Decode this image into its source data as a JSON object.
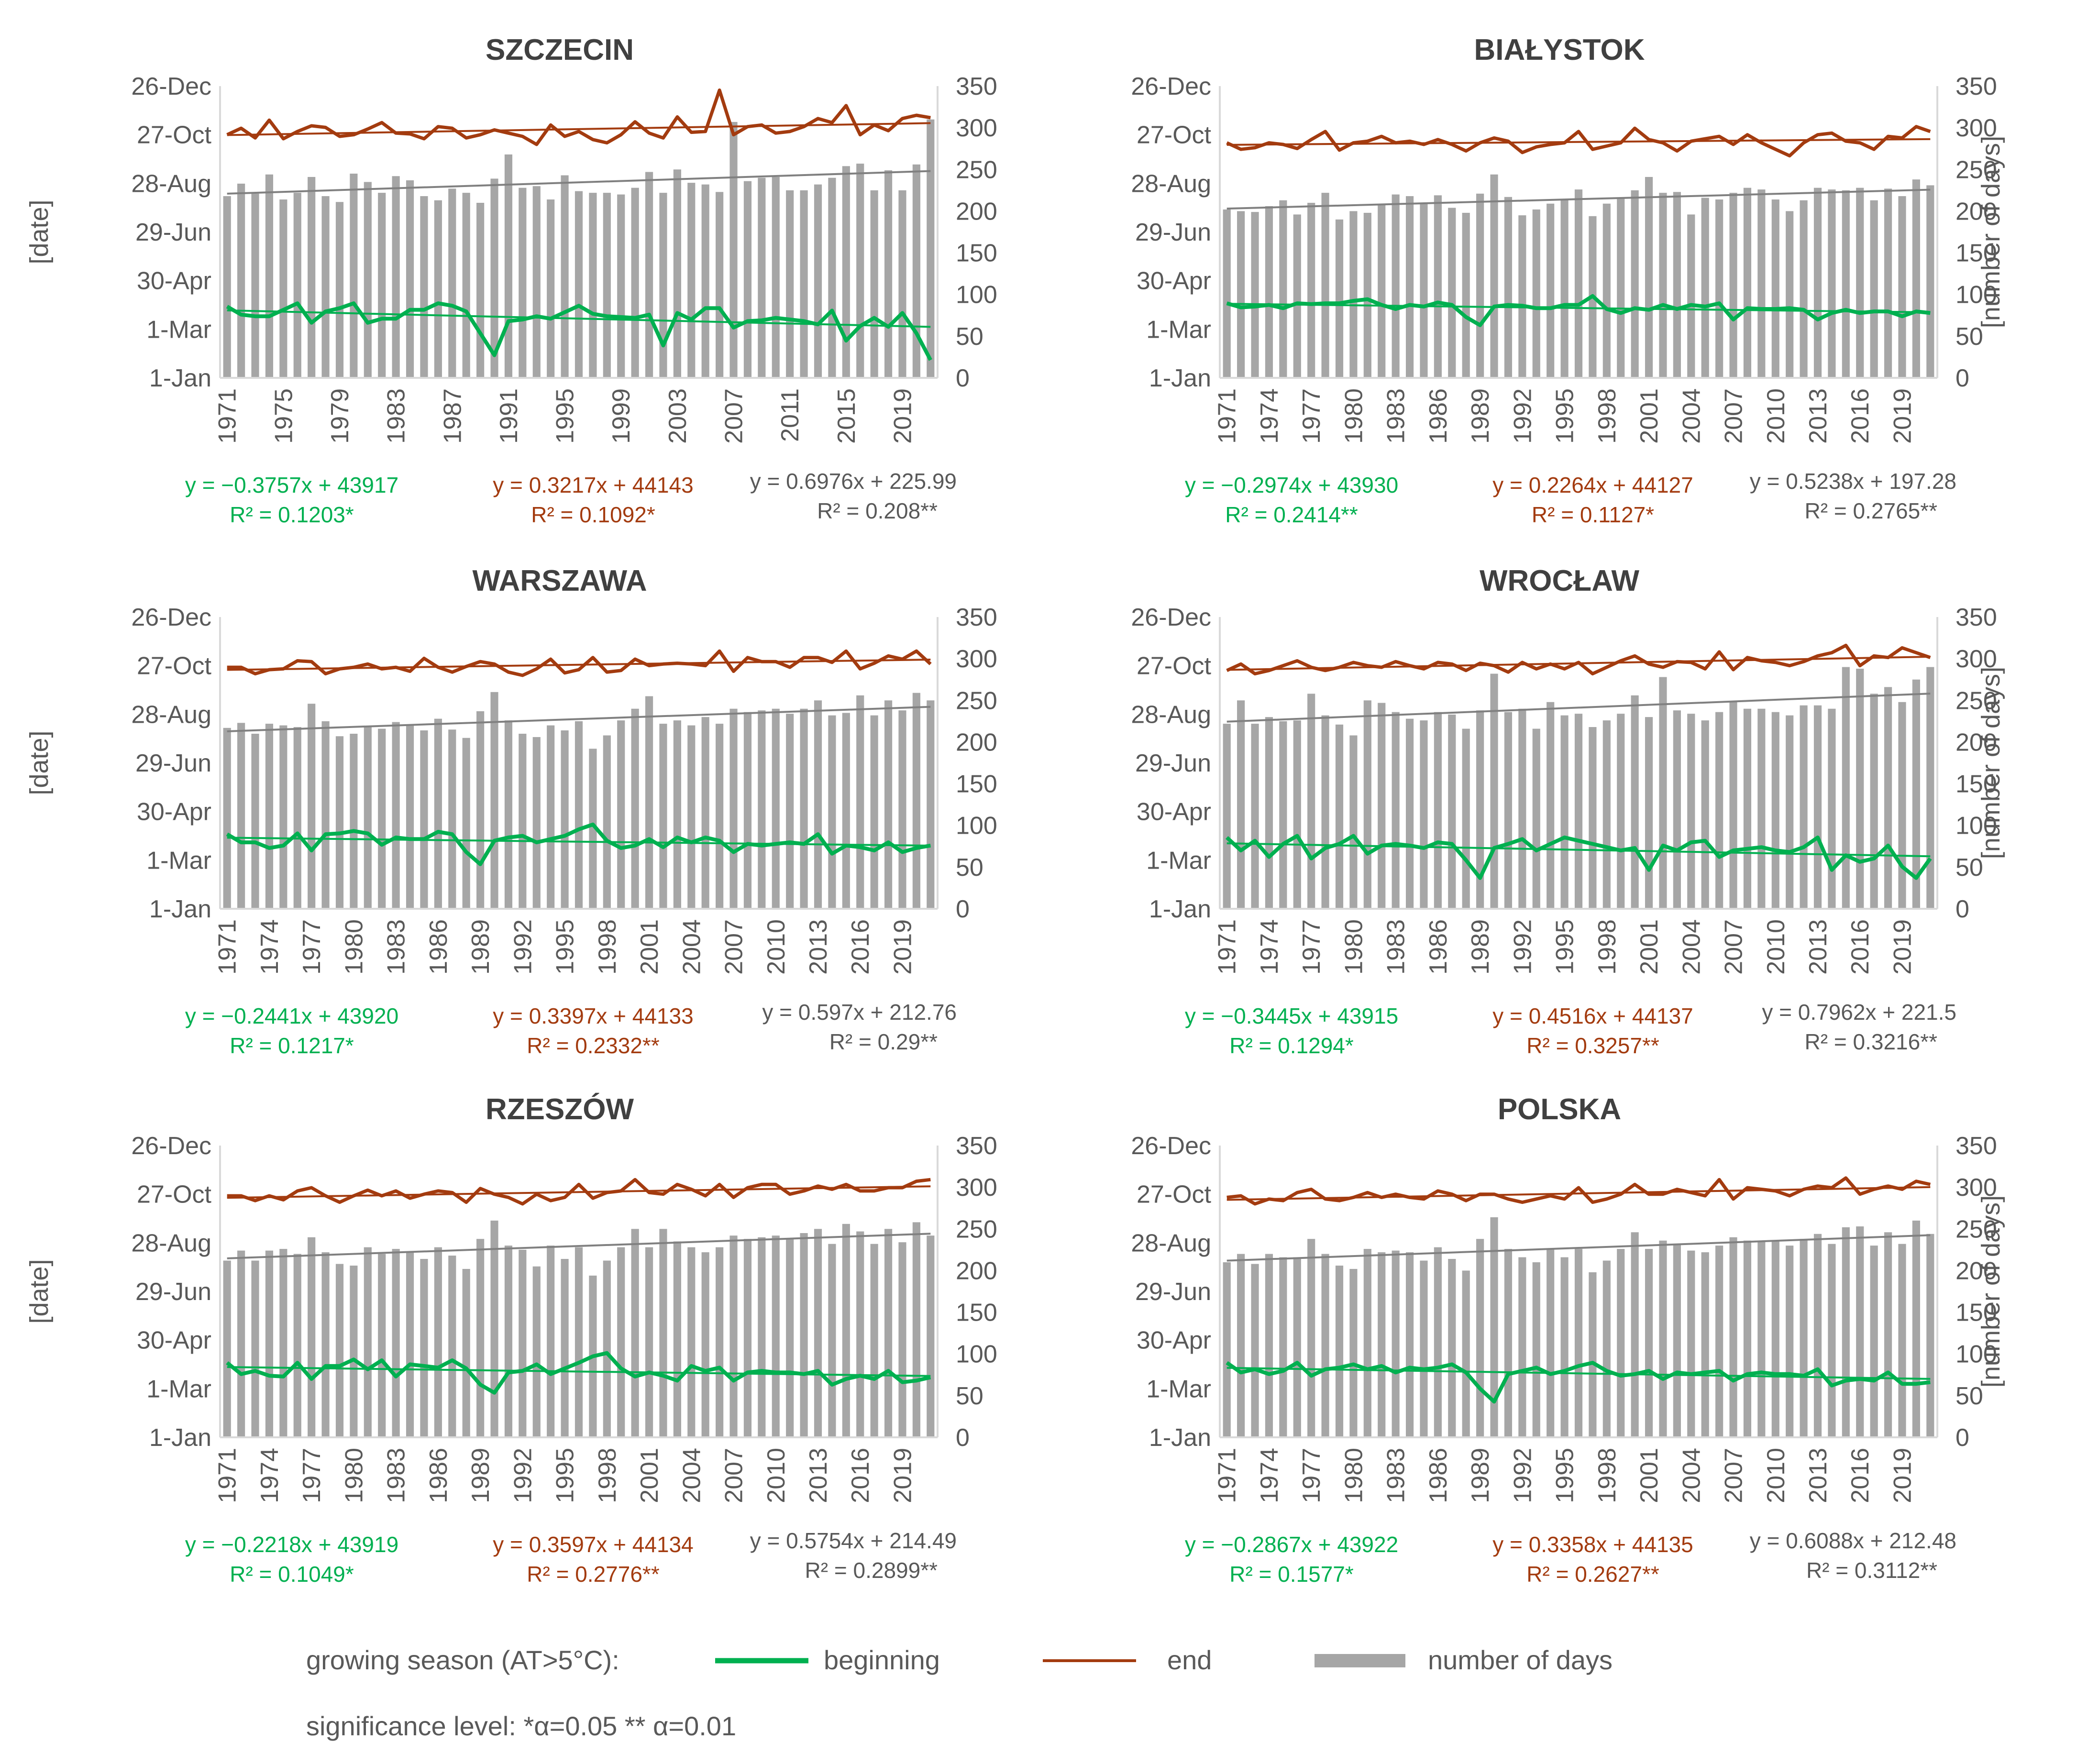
{
  "colors": {
    "beginning": "#00b050",
    "end": "#a33b0f",
    "days": "#a6a6a6",
    "trend_days": "#808080",
    "eq_days": "#595959",
    "axis": "#d9d9d9",
    "grid_days_bar": "#a6a6a6"
  },
  "legend": {
    "title": "growing season (AT>5°C):",
    "beginning": "beginning",
    "end": "end",
    "days": "number of days",
    "significance": "significance level: *α=0.05  ** α=0.01"
  },
  "chart_data": [
    {
      "type": "bar",
      "title": "SZCZECIN",
      "ylabel_left": "[date]",
      "ylabel_right": "",
      "x_step": 4,
      "first_year": 1971,
      "date_ticks": [
        "1-Jan",
        "1-Mar",
        "30-Apr",
        "29-Jun",
        "28-Aug",
        "27-Oct",
        "26-Dec"
      ],
      "day_ticks": [
        "0",
        "50",
        "100",
        "150",
        "200",
        "250",
        "300",
        "350"
      ],
      "ylim_days": [
        0,
        350
      ],
      "ylim_date": [
        0,
        360
      ],
      "x": [
        1971,
        1975,
        1979,
        1983,
        1987,
        1991,
        1995,
        1999,
        2003,
        2007,
        2011,
        2015,
        2019
      ],
      "days": [
        218,
        233,
        221,
        244,
        214,
        222,
        241,
        218,
        211,
        245,
        235,
        222,
        242,
        237,
        218,
        213,
        227,
        222,
        210,
        239,
        268,
        228,
        230,
        214,
        243,
        224,
        222,
        222,
        220,
        228,
        247,
        222,
        250,
        234,
        232,
        223,
        307,
        236,
        240,
        241,
        225,
        225,
        232,
        240,
        254,
        257,
        225,
        249,
        225,
        256,
        310
      ],
      "beginning": [
        88,
        78,
        76,
        76,
        84,
        92,
        68,
        82,
        86,
        92,
        68,
        73,
        73,
        84,
        84,
        92,
        89,
        82,
        55,
        28,
        70,
        72,
        76,
        73,
        81,
        89,
        79,
        76,
        75,
        74,
        78,
        40,
        80,
        72,
        86,
        86,
        62,
        70,
        71,
        74,
        72,
        70,
        66,
        83,
        46,
        64,
        74,
        63,
        80,
        55,
        22
      ],
      "end": [
        300,
        308,
        296,
        318,
        295,
        304,
        311,
        309,
        298,
        300,
        307,
        315,
        302,
        301,
        295,
        310,
        308,
        296,
        300,
        306,
        302,
        298,
        288,
        312,
        298,
        304,
        294,
        290,
        300,
        316,
        302,
        296,
        322,
        303,
        304,
        355,
        300,
        310,
        312,
        302,
        304,
        310,
        320,
        315,
        336,
        300,
        312,
        305,
        320,
        324,
        321
      ],
      "equations": {
        "beginning": [
          "y = −0.3757x + 43917",
          "R² = 0.1203*"
        ],
        "end": [
          "y = 0.3217x + 44143",
          "R² = 0.1092*"
        ],
        "days": [
          "y = 0.6976x + 225.99",
          "R² = 0.208**"
        ]
      }
    },
    {
      "type": "bar",
      "title": "BIAŁYSTOK",
      "ylabel_left": "",
      "ylabel_right": "[number of days]",
      "x_step": 3,
      "first_year": 1971,
      "date_ticks": [
        "1-Jan",
        "1-Mar",
        "30-Apr",
        "29-Jun",
        "28-Aug",
        "27-Oct",
        "26-Dec"
      ],
      "day_ticks": [
        "0",
        "50",
        "100",
        "150",
        "200",
        "250",
        "300",
        "350"
      ],
      "ylim_days": [
        0,
        350
      ],
      "ylim_date": [
        0,
        360
      ],
      "x": [
        1971,
        1974,
        1977,
        1980,
        1983,
        1986,
        1989,
        1992,
        1995,
        1998,
        2001,
        2004,
        2007,
        2010,
        2013,
        2016,
        2019
      ],
      "days": [
        202,
        200,
        199,
        206,
        213,
        196,
        210,
        222,
        190,
        200,
        198,
        208,
        220,
        218,
        210,
        219,
        204,
        198,
        221,
        244,
        217,
        195,
        202,
        209,
        214,
        226,
        194,
        209,
        216,
        225,
        241,
        222,
        223,
        196,
        216,
        214,
        222,
        228,
        226,
        214,
        200,
        213,
        228,
        226,
        225,
        228,
        213,
        227,
        218,
        238,
        231
      ],
      "beginning": [
        92,
        87,
        88,
        90,
        86,
        92,
        91,
        92,
        92,
        95,
        97,
        90,
        85,
        90,
        88,
        93,
        90,
        75,
        65,
        88,
        90,
        89,
        86,
        86,
        90,
        90,
        101,
        85,
        80,
        86,
        84,
        90,
        85,
        90,
        88,
        92,
        72,
        86,
        85,
        85,
        86,
        84,
        72,
        80,
        84,
        80,
        82,
        82,
        76,
        82,
        80
      ],
      "end": [
        290,
        282,
        284,
        290,
        288,
        283,
        294,
        304,
        281,
        290,
        292,
        298,
        290,
        292,
        288,
        294,
        288,
        280,
        290,
        296,
        292,
        278,
        285,
        288,
        290,
        304,
        282,
        286,
        290,
        308,
        294,
        290,
        280,
        292,
        295,
        298,
        288,
        300,
        290,
        282,
        274,
        290,
        300,
        302,
        292,
        290,
        282,
        298,
        296,
        310,
        304
      ],
      "equations": {
        "beginning": [
          "y = −0.2974x + 43930",
          "R² = 0.2414**"
        ],
        "end": [
          "y = 0.2264x + 44127",
          "R² = 0.1127*"
        ],
        "days": [
          "y = 0.5238x + 197.28",
          "R² = 0.2765**"
        ]
      }
    },
    {
      "type": "bar",
      "title": "WARSZAWA",
      "ylabel_left": "[date]",
      "ylabel_right": "",
      "x_step": 3,
      "first_year": 1971,
      "date_ticks": [
        "1-Jan",
        "1-Mar",
        "30-Apr",
        "29-Jun",
        "28-Aug",
        "27-Oct",
        "26-Dec"
      ],
      "day_ticks": [
        "0",
        "50",
        "100",
        "150",
        "200",
        "250",
        "300",
        "350"
      ],
      "ylim_days": [
        0,
        350
      ],
      "ylim_date": [
        0,
        360
      ],
      "x": [
        1971,
        1974,
        1977,
        1980,
        1983,
        1986,
        1989,
        1992,
        1995,
        1998,
        2001,
        2004,
        2007,
        2010,
        2013,
        2016,
        2019
      ],
      "days": [
        217,
        223,
        210,
        222,
        220,
        218,
        246,
        225,
        207,
        210,
        218,
        216,
        224,
        220,
        214,
        228,
        215,
        205,
        237,
        260,
        226,
        210,
        206,
        220,
        214,
        225,
        192,
        208,
        226,
        240,
        255,
        222,
        226,
        220,
        230,
        222,
        240,
        236,
        238,
        240,
        234,
        240,
        250,
        232,
        235,
        256,
        232,
        250,
        238,
        259,
        250
      ],
      "beginning": [
        92,
        82,
        82,
        75,
        78,
        93,
        72,
        92,
        93,
        96,
        93,
        79,
        88,
        86,
        86,
        95,
        92,
        70,
        55,
        84,
        88,
        90,
        82,
        86,
        90,
        98,
        104,
        84,
        75,
        78,
        86,
        76,
        88,
        82,
        88,
        84,
        70,
        80,
        78,
        80,
        82,
        80,
        92,
        68,
        78,
        76,
        72,
        82,
        70,
        75,
        78
      ],
      "end": [
        298,
        298,
        290,
        295,
        296,
        306,
        305,
        290,
        296,
        298,
        302,
        296,
        298,
        293,
        309,
        298,
        292,
        299,
        305,
        302,
        292,
        288,
        296,
        308,
        291,
        295,
        310,
        292,
        294,
        308,
        300,
        302,
        303,
        302,
        300,
        318,
        293,
        310,
        305,
        305,
        298,
        310,
        310,
        304,
        318,
        296,
        303,
        312,
        308,
        318,
        302
      ],
      "equations": {
        "beginning": [
          "y = −0.2441x + 43920",
          "R² = 0.1217*"
        ],
        "end": [
          "y = 0.3397x + 44133",
          "R² = 0.2332**"
        ],
        "days": [
          "y = 0.597x + 212.76",
          "R² = 0.29**"
        ]
      }
    },
    {
      "type": "bar",
      "title": "WROCŁAW",
      "ylabel_left": "",
      "ylabel_right": "[number of days]",
      "x_step": 3,
      "first_year": 1971,
      "date_ticks": [
        "1-Jan",
        "1-Mar",
        "30-Apr",
        "29-Jun",
        "28-Aug",
        "27-Oct",
        "26-Dec"
      ],
      "day_ticks": [
        "0",
        "50",
        "100",
        "150",
        "200",
        "250",
        "300",
        "350"
      ],
      "ylim_days": [
        0,
        350
      ],
      "ylim_date": [
        0,
        360
      ],
      "x": [
        1971,
        1974,
        1977,
        1980,
        1983,
        1986,
        1989,
        1992,
        1995,
        1998,
        2001,
        2004,
        2007,
        2010,
        2013,
        2016,
        2019
      ],
      "days": [
        222,
        250,
        222,
        230,
        225,
        226,
        258,
        232,
        221,
        208,
        250,
        247,
        236,
        228,
        226,
        236,
        233,
        216,
        238,
        282,
        236,
        240,
        216,
        248,
        232,
        234,
        218,
        226,
        234,
        256,
        230,
        278,
        238,
        234,
        226,
        236,
        248,
        240,
        240,
        236,
        232,
        244,
        244,
        240,
        290,
        288,
        258,
        266,
        248,
        275,
        290
      ],
      "beginning": [
        88,
        72,
        84,
        64,
        80,
        90,
        62,
        75,
        80,
        90,
        68,
        78,
        80,
        78,
        75,
        82,
        80,
        60,
        38,
        75,
        80,
        86,
        72,
        80,
        88,
        84,
        80,
        76,
        72,
        75,
        48,
        78,
        72,
        82,
        84,
        64,
        72,
        74,
        76,
        72,
        70,
        76,
        88,
        48,
        66,
        58,
        62,
        78,
        52,
        38,
        62
      ],
      "end": [
        294,
        302,
        290,
        294,
        300,
        306,
        298,
        294,
        298,
        304,
        300,
        298,
        305,
        300,
        296,
        304,
        302,
        294,
        303,
        300,
        292,
        304,
        296,
        302,
        296,
        304,
        290,
        298,
        306,
        312,
        302,
        298,
        305,
        304,
        296,
        317,
        295,
        310,
        306,
        304,
        300,
        305,
        312,
        316,
        325,
        300,
        312,
        310,
        322,
        316,
        310
      ],
      "equations": {
        "beginning": [
          "y = −0.3445x + 43915",
          "R² = 0.1294*"
        ],
        "end": [
          "y = 0.4516x + 44137",
          "R² = 0.3257**"
        ],
        "days": [
          "y = 0.7962x + 221.5",
          "R² = 0.3216**"
        ]
      }
    },
    {
      "type": "bar",
      "title": "RZESZÓW",
      "ylabel_left": "[date]",
      "ylabel_right": "",
      "x_step": 3,
      "first_year": 1971,
      "date_ticks": [
        "1-Jan",
        "1-Mar",
        "30-Apr",
        "29-Jun",
        "28-Aug",
        "27-Oct",
        "26-Dec"
      ],
      "day_ticks": [
        "0",
        "50",
        "100",
        "150",
        "200",
        "250",
        "300",
        "350"
      ],
      "ylim_days": [
        0,
        350
      ],
      "ylim_date": [
        0,
        360
      ],
      "x": [
        1971,
        1974,
        1977,
        1980,
        1983,
        1986,
        1989,
        1992,
        1995,
        1998,
        2001,
        2004,
        2007,
        2010,
        2013,
        2016,
        2019
      ],
      "days": [
        212,
        224,
        212,
        224,
        226,
        220,
        240,
        222,
        208,
        206,
        228,
        220,
        226,
        222,
        214,
        228,
        218,
        202,
        238,
        260,
        230,
        225,
        205,
        230,
        214,
        228,
        194,
        212,
        228,
        250,
        228,
        250,
        235,
        228,
        222,
        228,
        242,
        238,
        240,
        242,
        238,
        245,
        250,
        232,
        256,
        247,
        232,
        250,
        234,
        258,
        242
      ],
      "beginning": [
        92,
        78,
        82,
        76,
        75,
        92,
        72,
        88,
        88,
        96,
        84,
        95,
        75,
        90,
        88,
        86,
        95,
        85,
        65,
        55,
        80,
        82,
        90,
        78,
        85,
        92,
        100,
        104,
        85,
        75,
        80,
        76,
        70,
        88,
        82,
        86,
        70,
        80,
        82,
        80,
        80,
        78,
        82,
        65,
        72,
        76,
        72,
        82,
        68,
        70,
        74
      ],
      "end": [
        298,
        298,
        292,
        298,
        293,
        304,
        308,
        298,
        290,
        298,
        305,
        298,
        304,
        295,
        300,
        304,
        302,
        290,
        307,
        300,
        296,
        288,
        300,
        292,
        296,
        312,
        295,
        302,
        304,
        318,
        302,
        300,
        312,
        306,
        298,
        312,
        296,
        308,
        312,
        312,
        300,
        304,
        310,
        306,
        312,
        304,
        304,
        308,
        308,
        316,
        318
      ],
      "equations": {
        "beginning": [
          "y = −0.2218x + 43919",
          "R² = 0.1049*"
        ],
        "end": [
          "y = 0.3597x + 44134",
          "R² = 0.2776**"
        ],
        "days": [
          "y = 0.5754x + 214.49",
          "R² = 0.2899**"
        ]
      }
    },
    {
      "type": "bar",
      "title": "POLSKA",
      "ylabel_left": "",
      "ylabel_right": "[number of days]",
      "x_step": 3,
      "first_year": 1971,
      "date_ticks": [
        "1-Jan",
        "1-Mar",
        "30-Apr",
        "29-Jun",
        "28-Aug",
        "27-Oct",
        "26-Dec"
      ],
      "day_ticks": [
        "0",
        "50",
        "100",
        "150",
        "200",
        "250",
        "300",
        "350"
      ],
      "ylim_days": [
        0,
        350
      ],
      "ylim_date": [
        0,
        360
      ],
      "x": [
        1971,
        1974,
        1977,
        1980,
        1983,
        1986,
        1989,
        1992,
        1995,
        1998,
        2001,
        2004,
        2007,
        2010,
        2013,
        2016,
        2019
      ],
      "days": [
        210,
        220,
        208,
        220,
        216,
        216,
        238,
        220,
        206,
        202,
        226,
        222,
        224,
        222,
        212,
        228,
        214,
        200,
        238,
        264,
        226,
        216,
        210,
        226,
        216,
        226,
        198,
        212,
        226,
        246,
        226,
        236,
        232,
        224,
        222,
        230,
        240,
        236,
        236,
        236,
        230,
        238,
        244,
        232,
        252,
        253,
        230,
        246,
        232,
        260,
        244
      ],
      "beginning": [
        92,
        80,
        84,
        78,
        82,
        92,
        76,
        84,
        86,
        90,
        84,
        88,
        80,
        86,
        84,
        86,
        90,
        80,
        60,
        44,
        78,
        82,
        86,
        78,
        82,
        88,
        92,
        82,
        76,
        78,
        82,
        72,
        80,
        78,
        80,
        82,
        70,
        78,
        80,
        78,
        78,
        76,
        84,
        64,
        70,
        72,
        70,
        80,
        66,
        66,
        68
      ],
      "end": [
        296,
        298,
        288,
        294,
        292,
        302,
        306,
        294,
        292,
        296,
        302,
        296,
        300,
        296,
        294,
        304,
        300,
        292,
        300,
        300,
        294,
        290,
        294,
        298,
        294,
        308,
        290,
        294,
        300,
        312,
        300,
        300,
        306,
        302,
        298,
        318,
        294,
        308,
        306,
        304,
        298,
        306,
        310,
        308,
        320,
        300,
        306,
        310,
        306,
        316,
        312
      ],
      "equations": {
        "beginning": [
          "y = −0.2867x + 43922",
          "R² = 0.1577*"
        ],
        "end": [
          "y = 0.3358x + 44135",
          "R² = 0.2627**"
        ],
        "days": [
          "y = 0.6088x + 212.48",
          "R² = 0.3112**"
        ]
      }
    }
  ]
}
